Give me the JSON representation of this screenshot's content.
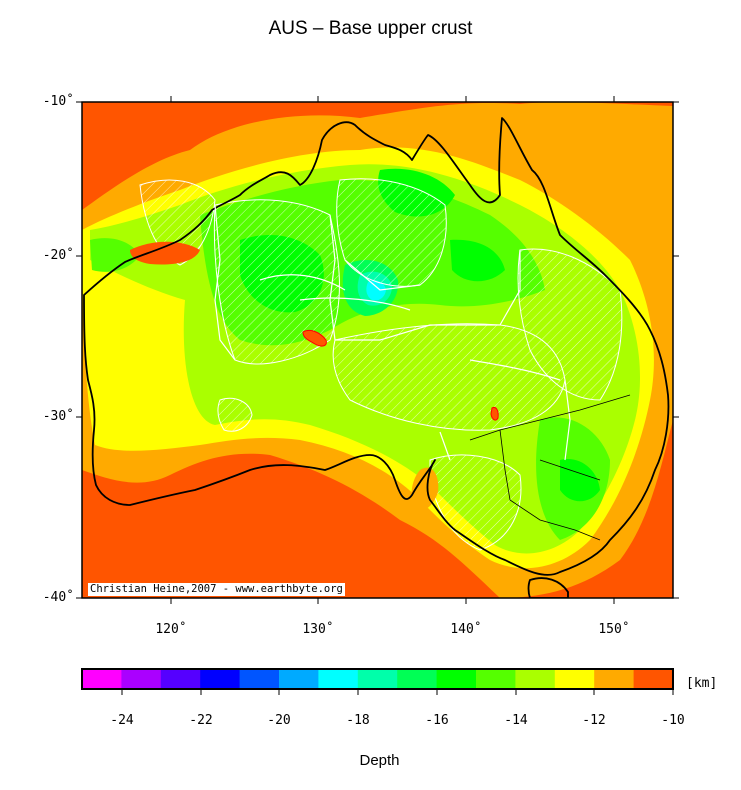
{
  "title": "AUS – Base upper crust",
  "lat_labels": [
    "-10˚",
    "-20˚",
    "-30˚",
    "-40˚"
  ],
  "lon_labels": [
    "120˚",
    "130˚",
    "140˚",
    "150˚"
  ],
  "credit": "Christian Heine,2007 - www.earthbyte.org",
  "colorbar": {
    "ticks": [
      "-24",
      "-22",
      "-20",
      "-18",
      "-16",
      "-14",
      "-12",
      "-10"
    ],
    "unit": "[km]",
    "colors": [
      "#ff00ff",
      "#aa00ff",
      "#5500ff",
      "#0000ff",
      "#0055ff",
      "#00aaff",
      "#00ffff",
      "#00ffaa",
      "#00ff55",
      "#00ff00",
      "#55ff00",
      "#aaff00",
      "#ffff00",
      "#ffaa00",
      "#ff5500"
    ]
  },
  "xlabel": "Depth"
}
